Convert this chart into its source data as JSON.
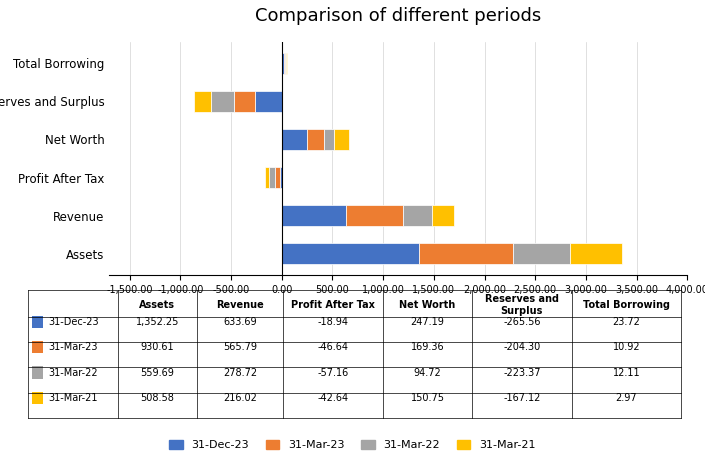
{
  "title": "Comparison of different periods",
  "categories": [
    "Assets",
    "Revenue",
    "Profit After Tax",
    "Net Worth",
    "Reserves and Surplus",
    "Total Borrowing"
  ],
  "periods": [
    "31-Dec-23",
    "31-Mar-23",
    "31-Mar-22",
    "31-Mar-21"
  ],
  "colors": [
    "#4472C4",
    "#ED7D31",
    "#A5A5A5",
    "#FFC000"
  ],
  "values": {
    "31-Dec-23": [
      1352.25,
      633.69,
      -18.94,
      247.19,
      -265.56,
      23.72
    ],
    "31-Mar-23": [
      930.61,
      565.79,
      -46.64,
      169.36,
      -204.3,
      10.92
    ],
    "31-Mar-22": [
      559.69,
      278.72,
      -57.16,
      94.72,
      -223.37,
      12.11
    ],
    "31-Mar-21": [
      508.58,
      216.02,
      -42.64,
      150.75,
      -167.12,
      2.97
    ]
  },
  "table_columns": [
    "Assets",
    "Revenue",
    "Profit After Tax",
    "Net Worth",
    "Reserves and\nSurplus",
    "Total Borrowing"
  ],
  "xlim": [
    -1700,
    4000
  ],
  "xticks": [
    -1500,
    -1000,
    -500,
    0,
    500,
    1000,
    1500,
    2000,
    2500,
    3000,
    3500,
    4000
  ]
}
